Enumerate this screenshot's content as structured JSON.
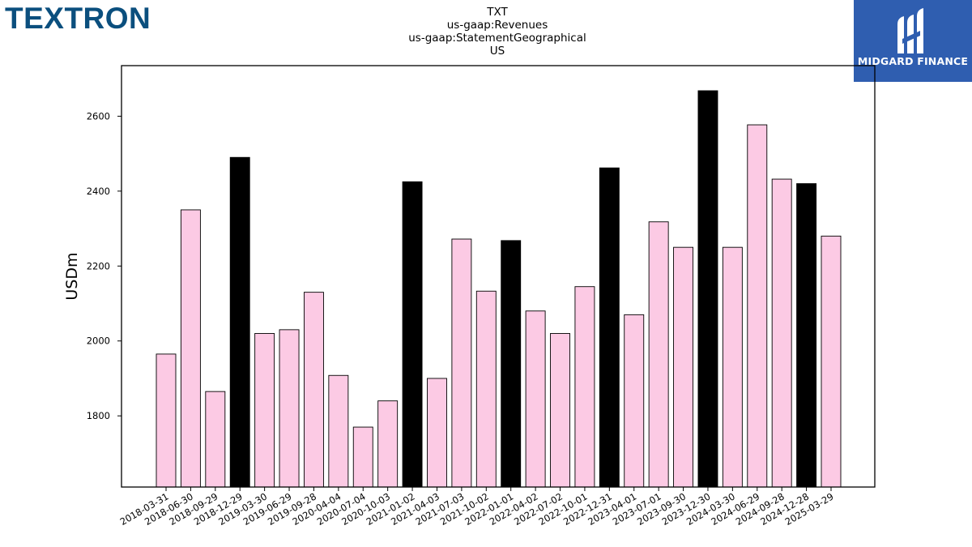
{
  "brand": {
    "logo_text": "TEXTRON",
    "logo_color": "#0b4f7e"
  },
  "partner": {
    "name": "MIDGARD FINANCE",
    "bg_color": "#2f5eb0"
  },
  "chart_data": {
    "type": "bar",
    "title_lines": [
      "TXT",
      "us-gaap:Revenues",
      "us-gaap:StatementGeographical",
      "US"
    ],
    "ylabel": "USDm",
    "xlabel": "",
    "ylim": [
      1610,
      2735
    ],
    "yticks": [
      1800,
      2000,
      2200,
      2400,
      2600
    ],
    "grid": false,
    "colors": {
      "quarter": "#fccae4",
      "year_end": "#000000"
    },
    "categories": [
      "2018-03-31",
      "2018-06-30",
      "2018-09-29",
      "2018-12-29",
      "2019-03-30",
      "2019-06-29",
      "2019-09-28",
      "2020-04-04",
      "2020-07-04",
      "2020-10-03",
      "2021-01-02",
      "2021-04-03",
      "2021-07-03",
      "2021-10-02",
      "2022-01-01",
      "2022-04-02",
      "2022-07-02",
      "2022-10-01",
      "2022-12-31",
      "2023-04-01",
      "2023-07-01",
      "2023-09-30",
      "2023-12-30",
      "2024-03-30",
      "2024-06-29",
      "2024-09-28",
      "2024-12-28",
      "2025-03-29"
    ],
    "values": [
      1965,
      2350,
      1865,
      2490,
      2020,
      2030,
      2130,
      1908,
      1770,
      1840,
      2425,
      1900,
      2272,
      2133,
      2268,
      2080,
      2020,
      2145,
      2462,
      2070,
      2318,
      2250,
      2668,
      2250,
      2577,
      2432,
      2420,
      2280
    ],
    "year_end": [
      false,
      false,
      false,
      true,
      false,
      false,
      false,
      false,
      false,
      false,
      true,
      false,
      false,
      false,
      true,
      false,
      false,
      false,
      true,
      false,
      false,
      false,
      true,
      false,
      false,
      false,
      true,
      false
    ]
  }
}
